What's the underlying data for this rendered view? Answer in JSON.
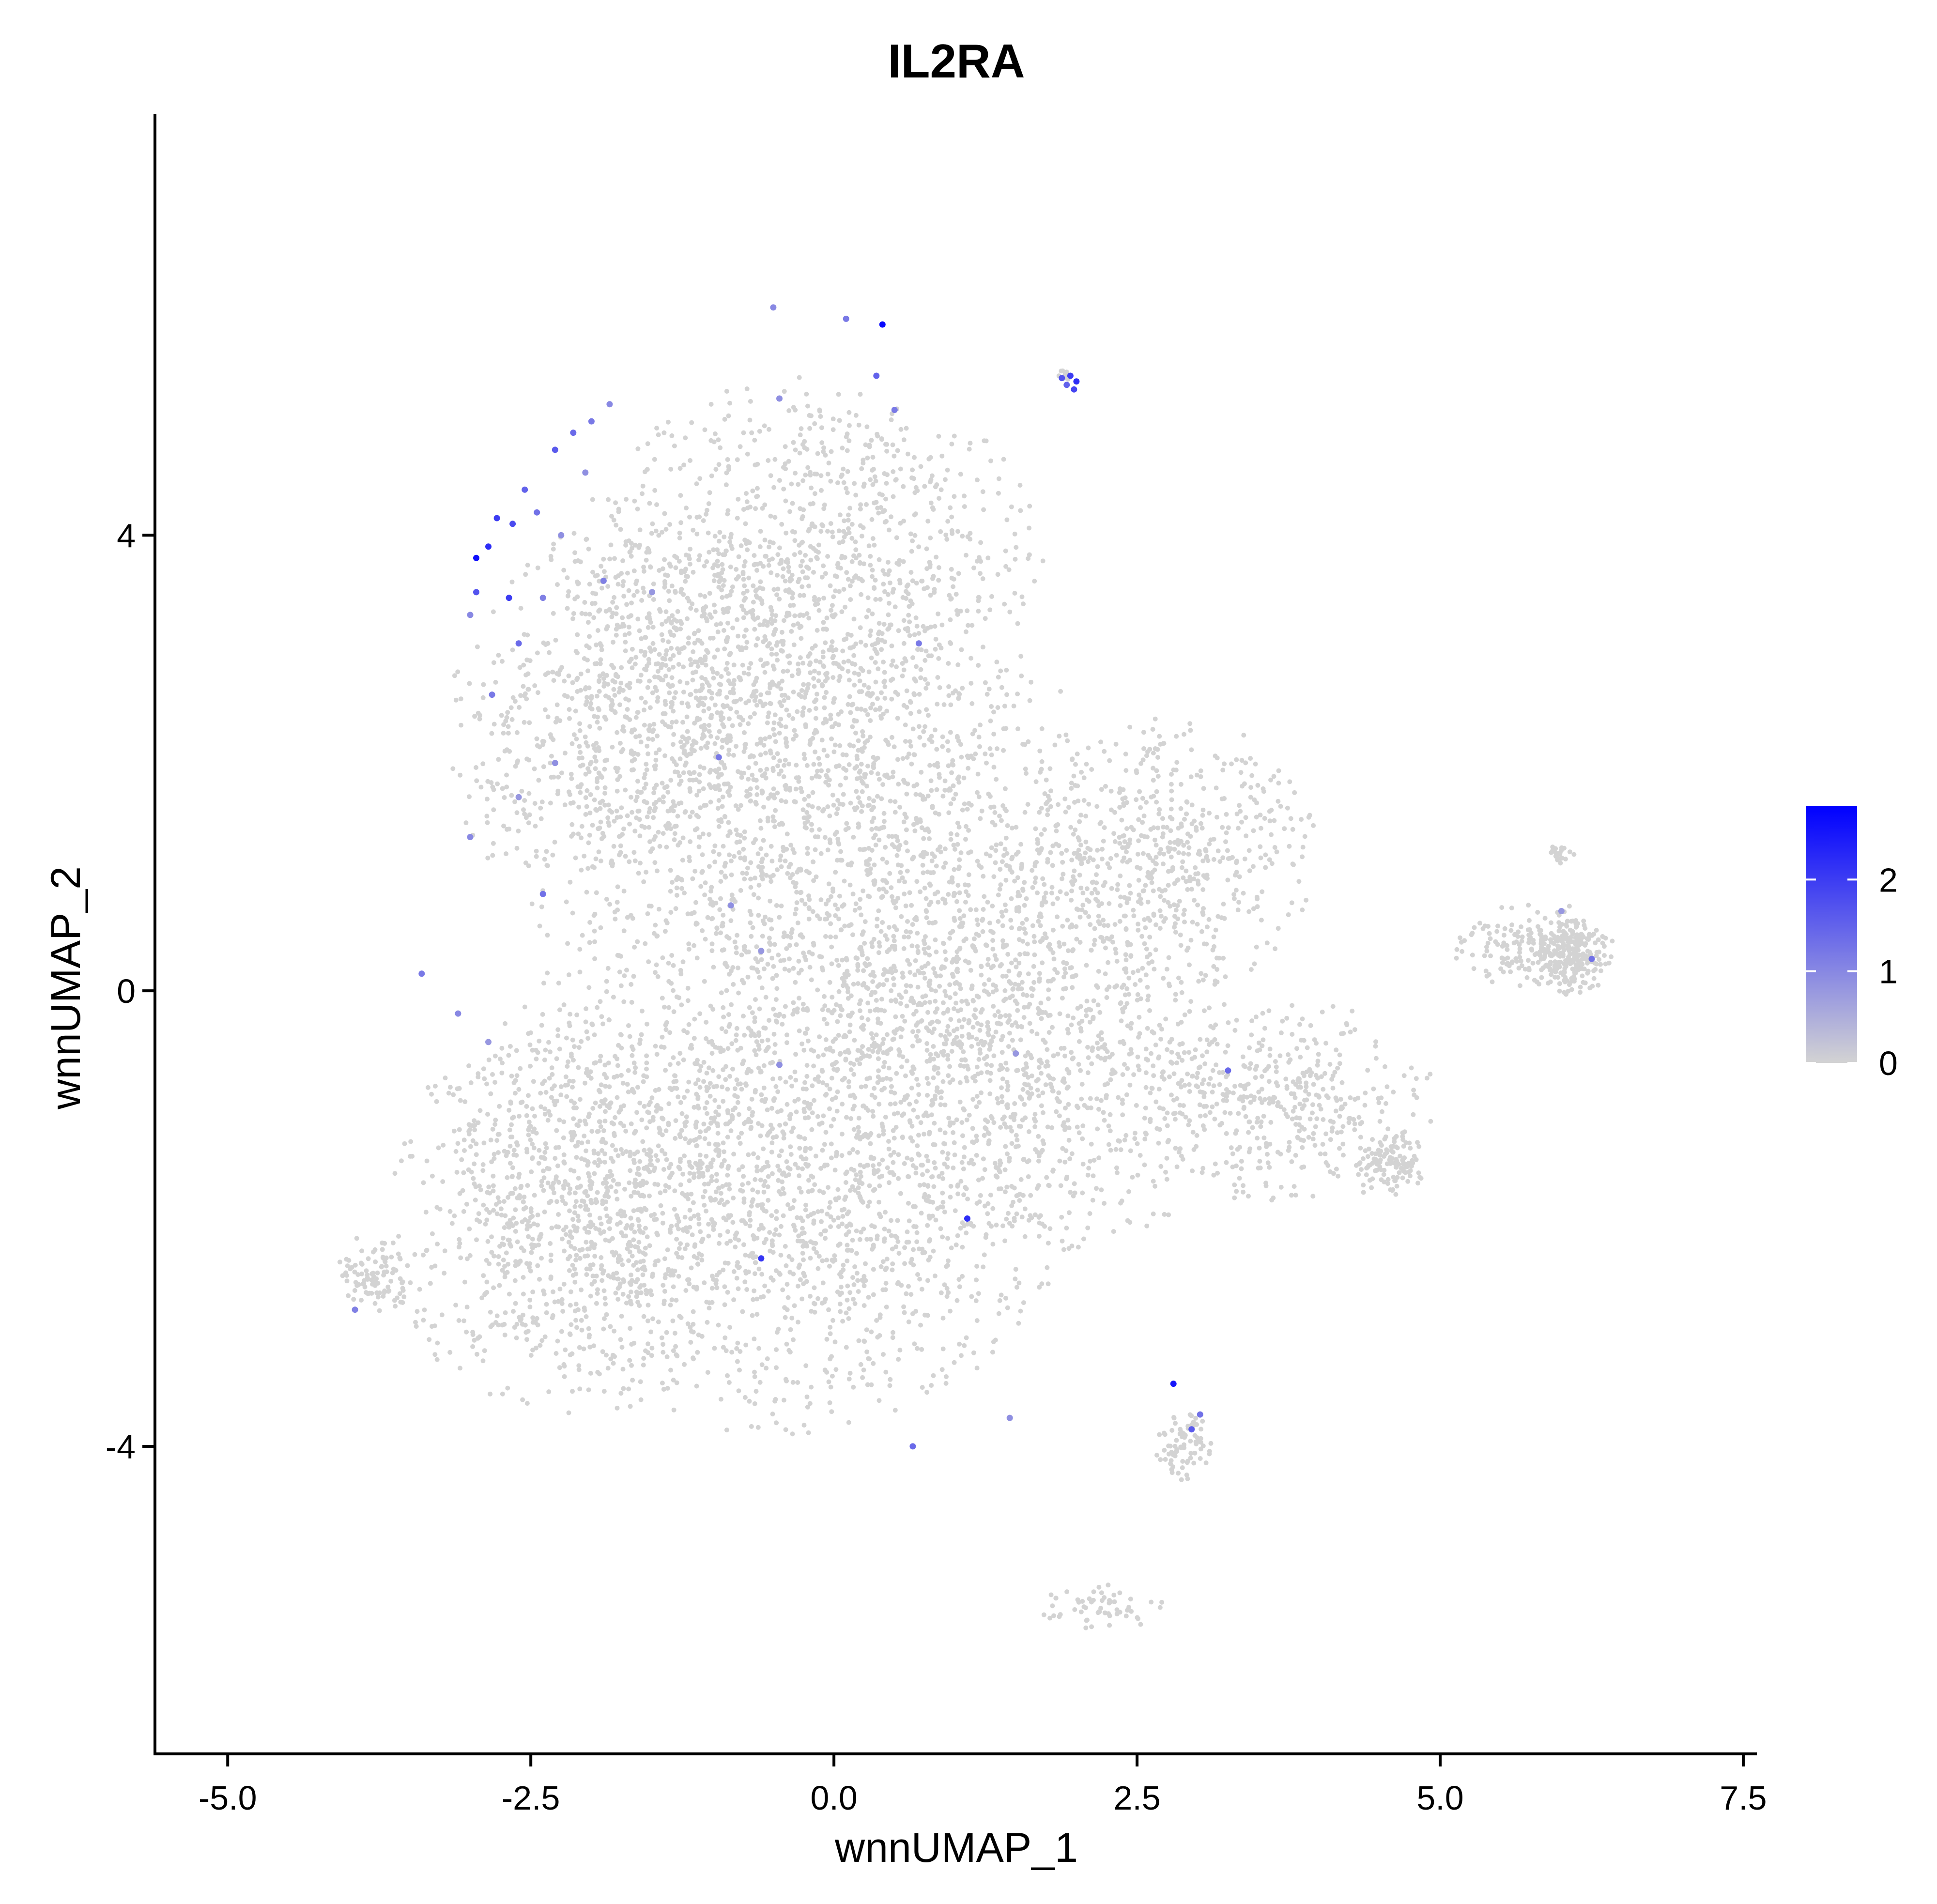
{
  "chart_data": {
    "type": "scatter",
    "title": "IL2RA",
    "xlabel": "wnnUMAP_1",
    "ylabel": "wnnUMAP_2",
    "xlim": [
      -5.6,
      7.6
    ],
    "ylim": [
      -6.7,
      7.7
    ],
    "x_ticks": [
      -5.0,
      -2.5,
      0.0,
      2.5,
      5.0,
      7.5
    ],
    "x_tick_labels": [
      "-5.0",
      "-2.5",
      "0.0",
      "2.5",
      "5.0",
      "7.5"
    ],
    "y_ticks": [
      4,
      0,
      -4
    ],
    "y_tick_labels": [
      "4",
      "0",
      "-4"
    ],
    "grid": false,
    "legend": {
      "type": "colorbar",
      "placement": "right",
      "min": 0,
      "max": 2.8,
      "ticks": [
        0,
        1,
        2
      ],
      "tick_labels": [
        "0",
        "1",
        "2"
      ],
      "low_color": "#d3d3d3",
      "high_color": "#0000ff"
    },
    "background_points": {
      "color": "#d3d3d3",
      "value": 0,
      "note_count": 9000,
      "regions": [
        {
          "cx": -0.2,
          "cy": 3.6,
          "rx": 2.0,
          "ry": 1.8,
          "weight": 12
        },
        {
          "cx": -1.5,
          "cy": 2.2,
          "rx": 1.7,
          "ry": 2.0,
          "weight": 12
        },
        {
          "cx": 0.5,
          "cy": 1.2,
          "rx": 2.0,
          "ry": 2.0,
          "weight": 12
        },
        {
          "cx": -0.5,
          "cy": -1.5,
          "rx": 2.6,
          "ry": 2.4,
          "weight": 22
        },
        {
          "cx": 1.8,
          "cy": -0.5,
          "rx": 1.8,
          "ry": 1.8,
          "weight": 10
        },
        {
          "cx": 2.8,
          "cy": 1.2,
          "rx": 1.2,
          "ry": 1.2,
          "weight": 5
        },
        {
          "cx": -2.2,
          "cy": -2.0,
          "rx": 1.5,
          "ry": 1.8,
          "weight": 8
        },
        {
          "cx": -3.8,
          "cy": -2.5,
          "rx": 0.3,
          "ry": 0.4,
          "weight": 1
        },
        {
          "cx": 3.8,
          "cy": -1.0,
          "rx": 1.2,
          "ry": 0.9,
          "weight": 4
        },
        {
          "cx": 4.6,
          "cy": -1.5,
          "rx": 0.3,
          "ry": 0.3,
          "weight": 1.2
        },
        {
          "cx": 5.8,
          "cy": 0.4,
          "rx": 0.7,
          "ry": 0.4,
          "weight": 2
        },
        {
          "cx": 6.1,
          "cy": 0.3,
          "rx": 0.3,
          "ry": 0.35,
          "weight": 2
        },
        {
          "cx": 6.0,
          "cy": 1.2,
          "rx": 0.12,
          "ry": 0.08,
          "weight": 0.2
        },
        {
          "cx": 2.9,
          "cy": -4.0,
          "rx": 0.25,
          "ry": 0.3,
          "weight": 0.8
        },
        {
          "cx": 2.2,
          "cy": -5.4,
          "rx": 0.6,
          "ry": 0.2,
          "weight": 0.6
        },
        {
          "cx": 1.9,
          "cy": 5.4,
          "rx": 0.08,
          "ry": 0.05,
          "weight": 0.1
        }
      ]
    },
    "highlighted_points": [
      {
        "x": -2.95,
        "y": 3.8,
        "v": 2.6
      },
      {
        "x": -2.85,
        "y": 3.9,
        "v": 2.2
      },
      {
        "x": -2.78,
        "y": 4.15,
        "v": 2.0
      },
      {
        "x": -2.65,
        "y": 4.1,
        "v": 1.8
      },
      {
        "x": -2.55,
        "y": 4.4,
        "v": 1.5
      },
      {
        "x": -2.45,
        "y": 4.2,
        "v": 1.3
      },
      {
        "x": -2.3,
        "y": 4.75,
        "v": 1.6
      },
      {
        "x": -2.15,
        "y": 4.9,
        "v": 1.4
      },
      {
        "x": -2.0,
        "y": 5.0,
        "v": 1.2
      },
      {
        "x": -1.85,
        "y": 5.15,
        "v": 1.0
      },
      {
        "x": -2.95,
        "y": 3.5,
        "v": 1.7
      },
      {
        "x": -2.68,
        "y": 3.45,
        "v": 2.0
      },
      {
        "x": -2.6,
        "y": 3.05,
        "v": 1.4
      },
      {
        "x": -2.82,
        "y": 2.6,
        "v": 1.2
      },
      {
        "x": -3.0,
        "y": 3.3,
        "v": 1.0
      },
      {
        "x": -2.4,
        "y": 3.45,
        "v": 1.1
      },
      {
        "x": -2.25,
        "y": 4.0,
        "v": 0.9
      },
      {
        "x": -1.9,
        "y": 3.6,
        "v": 1.1
      },
      {
        "x": -1.5,
        "y": 3.5,
        "v": 0.8
      },
      {
        "x": -2.05,
        "y": 4.55,
        "v": 0.9
      },
      {
        "x": -0.5,
        "y": 6.0,
        "v": 1.0
      },
      {
        "x": 0.1,
        "y": 5.9,
        "v": 1.2
      },
      {
        "x": 0.4,
        "y": 5.85,
        "v": 2.7
      },
      {
        "x": 0.35,
        "y": 5.4,
        "v": 1.5
      },
      {
        "x": 0.5,
        "y": 5.1,
        "v": 1.2
      },
      {
        "x": -0.45,
        "y": 5.2,
        "v": 0.9
      },
      {
        "x": 0.7,
        "y": 3.05,
        "v": 1.2
      },
      {
        "x": 1.95,
        "y": 5.4,
        "v": 2.0
      },
      {
        "x": 1.88,
        "y": 5.38,
        "v": 1.7
      },
      {
        "x": 2.0,
        "y": 5.35,
        "v": 2.2
      },
      {
        "x": 1.92,
        "y": 5.32,
        "v": 1.5
      },
      {
        "x": 1.98,
        "y": 5.28,
        "v": 1.9
      },
      {
        "x": -0.95,
        "y": 2.05,
        "v": 1.2
      },
      {
        "x": -2.3,
        "y": 2.0,
        "v": 0.9
      },
      {
        "x": -2.6,
        "y": 1.7,
        "v": 0.8
      },
      {
        "x": -3.0,
        "y": 1.35,
        "v": 1.0
      },
      {
        "x": -2.4,
        "y": 0.85,
        "v": 1.3
      },
      {
        "x": -0.85,
        "y": 0.75,
        "v": 0.9
      },
      {
        "x": -0.6,
        "y": 0.35,
        "v": 0.8
      },
      {
        "x": -3.4,
        "y": 0.15,
        "v": 1.2
      },
      {
        "x": -3.1,
        "y": -0.2,
        "v": 1.0
      },
      {
        "x": -2.85,
        "y": -0.45,
        "v": 0.8
      },
      {
        "x": -0.45,
        "y": -0.65,
        "v": 0.9
      },
      {
        "x": 1.1,
        "y": -2.0,
        "v": 2.2
      },
      {
        "x": -0.6,
        "y": -2.35,
        "v": 2.1
      },
      {
        "x": 1.5,
        "y": -0.55,
        "v": 0.8
      },
      {
        "x": 3.25,
        "y": -0.7,
        "v": 1.4
      },
      {
        "x": 2.8,
        "y": -3.45,
        "v": 2.5
      },
      {
        "x": 2.95,
        "y": -3.85,
        "v": 1.6
      },
      {
        "x": 3.02,
        "y": -3.72,
        "v": 1.3
      },
      {
        "x": 0.65,
        "y": -4.0,
        "v": 1.4
      },
      {
        "x": 1.45,
        "y": -3.75,
        "v": 0.9
      },
      {
        "x": -3.95,
        "y": -2.8,
        "v": 1.1
      },
      {
        "x": 6.25,
        "y": 0.28,
        "v": 1.3
      },
      {
        "x": 6.0,
        "y": 0.7,
        "v": 0.8
      }
    ]
  }
}
